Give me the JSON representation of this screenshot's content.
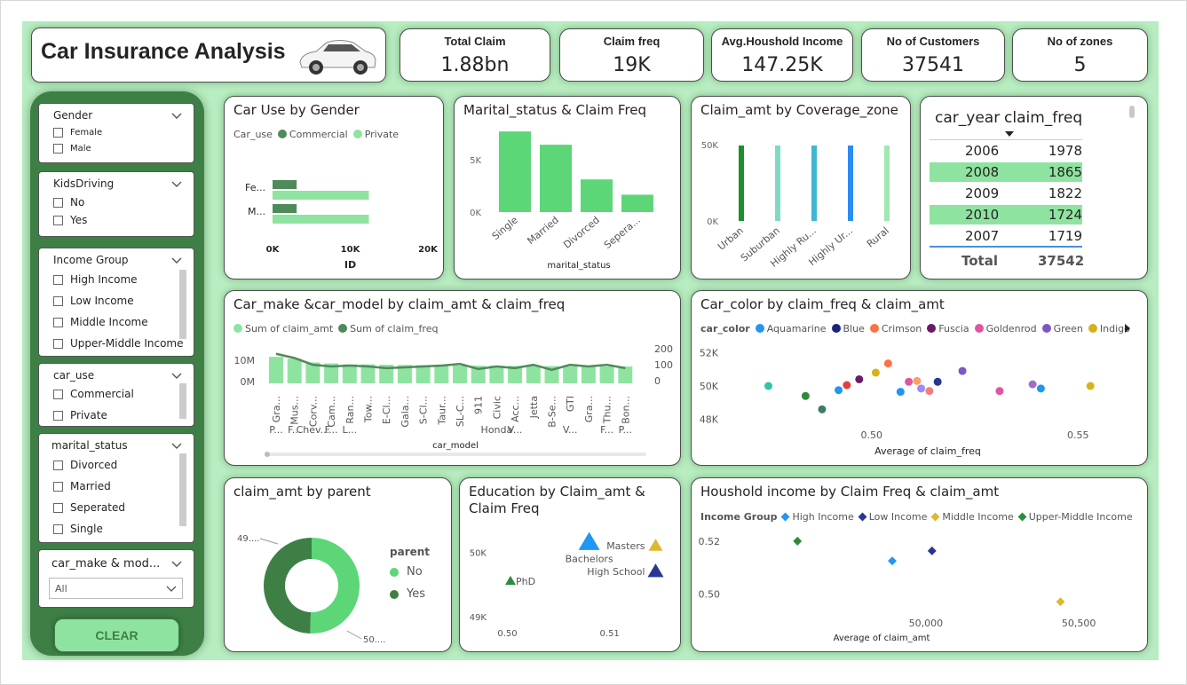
{
  "dashboard": {
    "title": "Car Insurance Analysis",
    "car_icon": "car-icon"
  },
  "kpis": [
    {
      "label": "Total Claim",
      "value": "1.88bn"
    },
    {
      "label": "Claim freq",
      "value": "19K"
    },
    {
      "label": "Avg.Houshold Income",
      "value": "147.25K"
    },
    {
      "label": "No of Customers",
      "value": "37541"
    },
    {
      "label": "No of zones",
      "value": "5"
    }
  ],
  "slicers": {
    "gender": {
      "title": "Gender",
      "items": [
        "Female",
        "Male"
      ]
    },
    "kids": {
      "title": "KidsDriving",
      "items": [
        "No",
        "Yes"
      ]
    },
    "income": {
      "title": "Income Group",
      "items": [
        "High Income",
        "Low Income",
        "Middle Income",
        "Upper-Middle Income"
      ]
    },
    "car_use": {
      "title": "car_use",
      "items": [
        "Commercial",
        "Private"
      ]
    },
    "marital": {
      "title": "marital_status",
      "items": [
        "Divorced",
        "Married",
        "Seperated",
        "Single"
      ]
    },
    "make": {
      "title": "car_make & mod...",
      "selected": "All"
    }
  },
  "clear_button": "CLEAR",
  "colors": {
    "dark_green": "#4f8a5a",
    "light_green": "#8fe3a0",
    "mid_green": "#5cd677",
    "canvas": "#b8ecc1",
    "sidebar": "#3e7f46"
  },
  "charts": {
    "car_use_gender": {
      "title": "Car Use by Gender",
      "legend_title": "Car_use",
      "xlabel": "ID",
      "xticks": [
        "0K",
        "10K",
        "20K"
      ],
      "chart_data": {
        "type": "bar",
        "categories": [
          "Fe...",
          "M..."
        ],
        "series": [
          {
            "name": "Commercial",
            "values": [
              3100,
              3100
            ]
          },
          {
            "name": "Private",
            "values": [
              12400,
              12400
            ]
          }
        ],
        "xlim": [
          0,
          20000
        ]
      }
    },
    "marital_freq": {
      "title": "Marital_status & Claim Freq",
      "xlabel": "marital_status",
      "yticks": [
        "5K",
        "0K"
      ],
      "chart_data": {
        "type": "bar",
        "categories": [
          "Single",
          "Married",
          "Divorced",
          "Sepera..."
        ],
        "values": [
          7900,
          6600,
          3200,
          1700
        ],
        "ylim": [
          0,
          8000
        ]
      }
    },
    "coverage_zone": {
      "title": "Claim_amt by Coverage_zone",
      "yticks": [
        "50K",
        "0K"
      ],
      "chart_data": {
        "type": "bar",
        "categories": [
          "Urban",
          "Suburban",
          "Highly Ru...",
          "Highly Ur...",
          "Rural"
        ],
        "values": [
          50000,
          50000,
          50000,
          50000,
          50000
        ],
        "colors": [
          "#1a8f2e",
          "#7fd8c8",
          "#3fb7d4",
          "#2c8cf5",
          "#9fe8b0"
        ],
        "ylim": [
          0,
          50000
        ]
      }
    },
    "year_table": {
      "col1": "car_year",
      "col2": "claim_freq",
      "rows": [
        [
          "2006",
          "1978"
        ],
        [
          "2008",
          "1865"
        ],
        [
          "2009",
          "1822"
        ],
        [
          "2010",
          "1724"
        ],
        [
          "2007",
          "1719"
        ]
      ],
      "total_label": "Total",
      "total_value": "37542"
    },
    "make_model": {
      "title": "Car_make &car_model by claim_amt & claim_freq",
      "legend": [
        "Sum of claim_amt",
        "Sum of claim_freq"
      ],
      "xlabel": "car_model",
      "left_ticks": [
        "10M",
        "0M"
      ],
      "right_ticks": [
        "200",
        "100",
        "0"
      ],
      "chart_data": {
        "type": "bar",
        "categories": [
          "Gra...",
          "Mus...",
          "Corv...",
          "Cam...",
          "Ran...",
          "Tow...",
          "E-Cl...",
          "Gala...",
          "S-Cl...",
          "Taur...",
          "SL-C...",
          "911",
          "Civic",
          "Acc...",
          "Jetta",
          "B-Se...",
          "GTI",
          "Gra...",
          "Thu...",
          "Bon..."
        ],
        "makes": [
          "P...",
          "F...",
          "Chev...",
          "F...",
          "L...",
          "",
          "",
          "",
          "",
          "",
          "",
          "",
          "Honda",
          "V...",
          "",
          "",
          "V...",
          "",
          "F...",
          "P..."
        ],
        "series": [
          {
            "name": "Sum of claim_amt",
            "values": [
              14000000,
              13000000,
              11000000,
              10500000,
              10000000,
              10000000,
              9800000,
              9700000,
              9600000,
              9500000,
              9400000,
              9300000,
              9300000,
              9200000,
              9200000,
              9100000,
              9000000,
              9000000,
              8900000,
              8900000
            ]
          },
          {
            "name": "Sum of claim_freq",
            "values": [
              175,
              150,
              110,
              100,
              105,
              100,
              90,
              95,
              100,
              105,
              115,
              85,
              100,
              90,
              110,
              80,
              110,
              100,
              110,
              90
            ]
          }
        ],
        "ylim": [
          0,
          15000000
        ],
        "y2lim": [
          0,
          200
        ]
      }
    },
    "car_color": {
      "title": "Car_color by claim_freq & claim_amt",
      "legend_title": "car_color",
      "legend": [
        {
          "name": "Aquamarine",
          "color": "#2196f3"
        },
        {
          "name": "Blue",
          "color": "#1a237e"
        },
        {
          "name": "Crimson",
          "color": "#ff7043"
        },
        {
          "name": "Fuscia",
          "color": "#6a1b6a"
        },
        {
          "name": "Goldenrod",
          "color": "#e055a0"
        },
        {
          "name": "Green",
          "color": "#7e57c2"
        },
        {
          "name": "Indigo",
          "color": "#d4b21a"
        }
      ],
      "xlabel": "Average of claim_freq",
      "xticks": [
        "0.50",
        "0.55"
      ],
      "yticks": [
        "52K",
        "50K",
        "48K"
      ],
      "chart_data": {
        "type": "scatter",
        "points": [
          {
            "x": 0.475,
            "y": 50000,
            "color": "#2ec4a6"
          },
          {
            "x": 0.484,
            "y": 49400,
            "color": "#2e8b3e"
          },
          {
            "x": 0.488,
            "y": 48600,
            "color": "#3e7a6a"
          },
          {
            "x": 0.492,
            "y": 49750,
            "color": "#2196f3"
          },
          {
            "x": 0.494,
            "y": 50050,
            "color": "#e04040"
          },
          {
            "x": 0.497,
            "y": 50400,
            "color": "#6a1b6a"
          },
          {
            "x": 0.501,
            "y": 50800,
            "color": "#d4b21a"
          },
          {
            "x": 0.504,
            "y": 51350,
            "color": "#ff7043"
          },
          {
            "x": 0.507,
            "y": 49650,
            "color": "#2196f3"
          },
          {
            "x": 0.509,
            "y": 50250,
            "color": "#e055a0"
          },
          {
            "x": 0.511,
            "y": 50300,
            "color": "#f8a06a"
          },
          {
            "x": 0.512,
            "y": 49850,
            "color": "#9c8cf0"
          },
          {
            "x": 0.514,
            "y": 49700,
            "color": "#f08080"
          },
          {
            "x": 0.516,
            "y": 50250,
            "color": "#283593"
          },
          {
            "x": 0.522,
            "y": 50900,
            "color": "#7e57c2"
          },
          {
            "x": 0.531,
            "y": 49700,
            "color": "#e055a0"
          },
          {
            "x": 0.539,
            "y": 50100,
            "color": "#9c6fd0"
          },
          {
            "x": 0.541,
            "y": 49850,
            "color": "#2196f3"
          },
          {
            "x": 0.553,
            "y": 50000,
            "color": "#d4b21a"
          }
        ],
        "xlim": [
          0.465,
          0.565
        ],
        "ylim": [
          47500,
          52500
        ]
      }
    },
    "parent": {
      "title": "claim_amt by parent",
      "legend_title": "parent",
      "legend": [
        "No",
        "Yes"
      ],
      "label_left": "49....",
      "label_right": "50....",
      "chart_data": {
        "type": "pie",
        "categories": [
          "No",
          "Yes"
        ],
        "values": [
          50,
          49
        ],
        "colors": [
          "#5cd677",
          "#3e7f46"
        ]
      }
    },
    "education": {
      "title": "Education by Claim_amt & Claim Freq",
      "xticks": [
        "0.50",
        "0.51"
      ],
      "yticks": [
        "50K",
        "49K"
      ],
      "chart_data": {
        "type": "scatter",
        "points": [
          {
            "label": "PhD",
            "x": 0.5003,
            "y": 49550,
            "color": "#2e8b3e",
            "size": 6
          },
          {
            "label": "Bachelors",
            "x": 0.508,
            "y": 50150,
            "color": "#2196f3",
            "size": 12
          },
          {
            "label": "Masters",
            "x": 0.5145,
            "y": 50100,
            "color": "#e0b830",
            "size": 8
          },
          {
            "label": "High School",
            "x": 0.5145,
            "y": 49700,
            "color": "#283593",
            "size": 9
          }
        ],
        "xlim": [
          0.499,
          0.5155
        ],
        "ylim": [
          48900,
          50350
        ]
      }
    },
    "household": {
      "title": "Houshold income by Claim Freq & claim_amt",
      "legend_title": "Income Group",
      "legend": [
        {
          "name": "High Income",
          "color": "#2196f3"
        },
        {
          "name": "Low Income",
          "color": "#283593"
        },
        {
          "name": "Middle Income",
          "color": "#e0b830"
        },
        {
          "name": "Upper-Middle Income",
          "color": "#2e8b3e"
        }
      ],
      "xlabel": "Average of claim_amt",
      "xticks": [
        "50,000",
        "50,500"
      ],
      "yticks": [
        "0.52",
        "0.50"
      ],
      "chart_data": {
        "type": "scatter",
        "points": [
          {
            "name": "Upper-Middle Income",
            "x": 49580,
            "y": 0.52,
            "color": "#2e8b3e"
          },
          {
            "name": "High Income",
            "x": 49890,
            "y": 0.5125,
            "color": "#2196f3"
          },
          {
            "name": "Low Income",
            "x": 50020,
            "y": 0.5163,
            "color": "#283593"
          },
          {
            "name": "Middle Income",
            "x": 50440,
            "y": 0.497,
            "color": "#e0b830"
          }
        ],
        "xlim": [
          49350,
          50700
        ],
        "ylim": [
          0.492,
          0.524
        ]
      }
    }
  }
}
